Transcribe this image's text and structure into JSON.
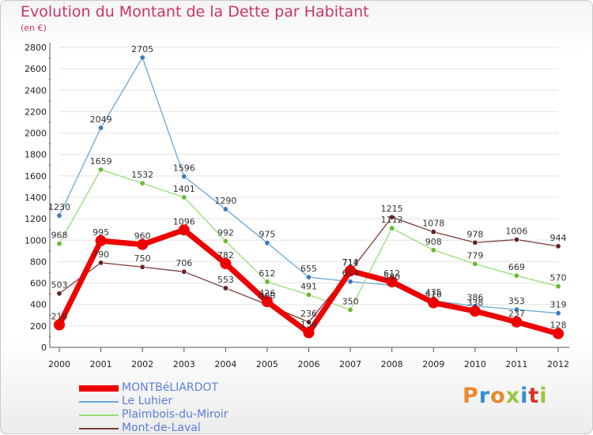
{
  "header": {
    "title": "Evolution du Montant de la Dette par Habitant",
    "subtitle": "(en €)"
  },
  "logo": {
    "text": "Proxiti",
    "colors": [
      "#e8892b",
      "#2f8fd1",
      "#e8892b",
      "#9bc53d",
      "#2f8fd1",
      "#d9312b",
      "#9bc53d"
    ]
  },
  "colors": {
    "title": "#cc3366",
    "axis": "#555555",
    "grid": "#e3e3e3"
  },
  "chart_data": {
    "type": "line",
    "title": "Evolution du Montant de la Dette par Habitant",
    "ylabel": "(en €)",
    "xlabel": "",
    "x": [
      "2000",
      "2001",
      "2002",
      "2003",
      "2004",
      "2005",
      "2006",
      "2007",
      "2008",
      "2009",
      "2010",
      "2011",
      "2012"
    ],
    "ylim": [
      0,
      2800
    ],
    "yticks": [
      0,
      200,
      400,
      600,
      800,
      1000,
      1200,
      1400,
      1600,
      1800,
      2000,
      2200,
      2400,
      2600,
      2800
    ],
    "grid": "horizontal",
    "legend_position": "bottom-left",
    "series": [
      {
        "name": "MONTBéLIARDOT",
        "color": "#ee0000",
        "marker": "#ee0000",
        "width": "thick",
        "values": [
          210,
          995,
          960,
          1096,
          782,
          426,
          136,
          714,
          612,
          416,
          338,
          237,
          128
        ],
        "labels": [
          "210",
          "995",
          "960",
          "1096",
          "782",
          "426",
          "136",
          "714",
          "612",
          "416",
          "338",
          "237",
          "128"
        ]
      },
      {
        "name": "Le Luhier",
        "color": "#6aa6d6",
        "marker": "#3a7bbf",
        "width": "thin",
        "values": [
          1230,
          2049,
          2705,
          1596,
          1290,
          975,
          655,
          614,
          580,
          435,
          386,
          353,
          319
        ],
        "labels": [
          "1230",
          "2049",
          "2705",
          "1596",
          "1290",
          "975",
          "655",
          "614",
          "580",
          "435",
          "386",
          "353",
          "319"
        ]
      },
      {
        "name": "Plaimbois-du-Miroir",
        "color": "#99dd77",
        "marker": "#66bb33",
        "width": "thin",
        "values": [
          968,
          1659,
          1532,
          1401,
          992,
          612,
          491,
          350,
          1112,
          908,
          779,
          669,
          570
        ],
        "labels": [
          "968",
          "1659",
          "1532",
          "1401",
          "992",
          "612",
          "491",
          "350",
          "1112",
          "908",
          "779",
          "669",
          "570"
        ]
      },
      {
        "name": "Mont-de-Laval",
        "color": "#7a3a3a",
        "marker": "#662222",
        "width": "thin",
        "values": [
          503,
          790,
          750,
          706,
          553,
          400,
          236,
          711,
          1215,
          1078,
          978,
          1006,
          944
        ],
        "labels": [
          "503",
          "790",
          "750",
          "706",
          "553",
          "400",
          "236",
          "711",
          "1215",
          "1078",
          "978",
          "1006",
          "944"
        ]
      }
    ]
  }
}
